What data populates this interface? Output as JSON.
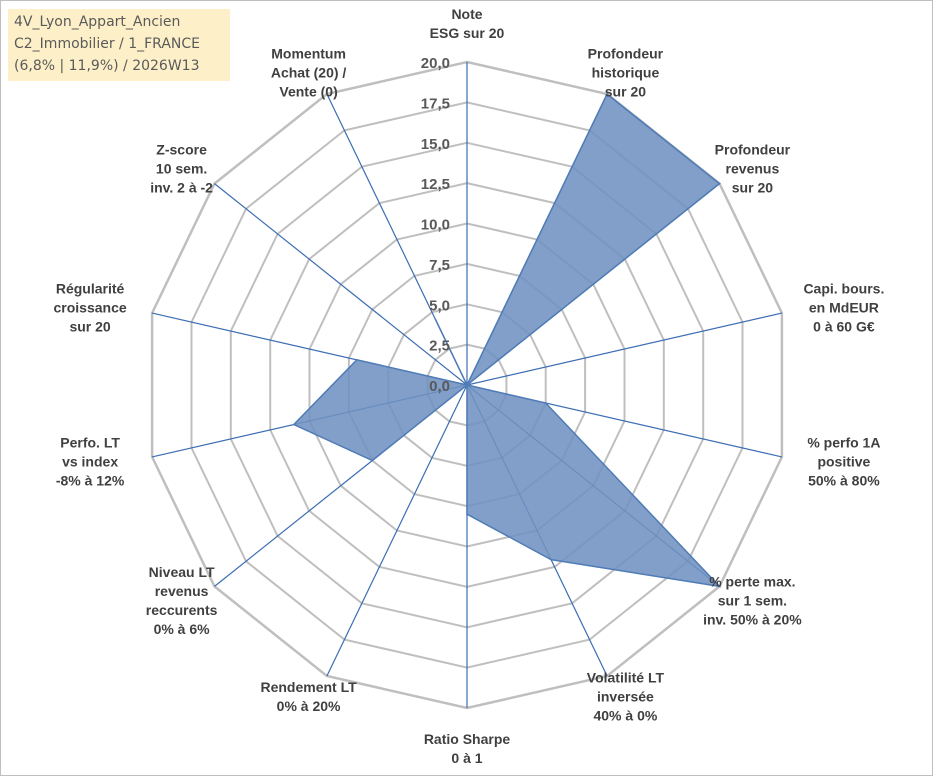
{
  "title_lines": [
    "4V_Lyon_Appart_Ancien",
    "C2_Immobilier / 1_FRANCE",
    "(6,8% | 11,9%) / 2026W13"
  ],
  "chart_data": {
    "type": "radar",
    "range": [
      0,
      20
    ],
    "ticks": [
      "0,0",
      "2,5",
      "5,0",
      "7,5",
      "10,0",
      "12,5",
      "15,0",
      "17,5",
      "20,0"
    ],
    "axes": [
      {
        "label_lines": [
          "Note",
          "ESG sur 20"
        ],
        "value": 0
      },
      {
        "label_lines": [
          "Profondeur",
          "historique",
          "sur 20"
        ],
        "value": 20
      },
      {
        "label_lines": [
          "Profondeur",
          "revenus",
          "sur 20"
        ],
        "value": 20
      },
      {
        "label_lines": [
          "Capi. bours.",
          "en MdEUR",
          "0 à 60 G€"
        ],
        "value": 0
      },
      {
        "label_lines": [
          "% perfo 1A",
          "positive",
          "50% à 80%"
        ],
        "value": 5
      },
      {
        "label_lines": [
          "% perte max.",
          "sur 1 sem.",
          "inv. 50% à 20%"
        ],
        "value": 20
      },
      {
        "label_lines": [
          "Volatilité LT",
          "inversée",
          "40% à 0%"
        ],
        "value": 12
      },
      {
        "label_lines": [
          "Ratio Sharpe",
          "0 à 1"
        ],
        "value": 8
      },
      {
        "label_lines": [
          "Rendement LT",
          "0% à 20%"
        ],
        "value": 0
      },
      {
        "label_lines": [
          "Niveau LT",
          "revenus",
          "reccurents",
          "0% à 6%"
        ],
        "value": 7.5
      },
      {
        "label_lines": [
          "Perfo. LT",
          "vs index",
          "-8% à 12%"
        ],
        "value": 11
      },
      {
        "label_lines": [
          "Régularité",
          "croissance",
          "sur 20"
        ],
        "value": 7
      },
      {
        "label_lines": [
          "Z-score",
          "10 sem.",
          "inv. 2 à -2"
        ],
        "value": 0
      },
      {
        "label_lines": [
          "Momentum",
          "Achat (20) /",
          "Vente (0)"
        ],
        "value": 4.5
      }
    ],
    "series_color": "#4f7cb6",
    "series_fill": "#6f92c0",
    "grid_color": "#bfbfbf",
    "spoke_color": "#3b6db3"
  }
}
